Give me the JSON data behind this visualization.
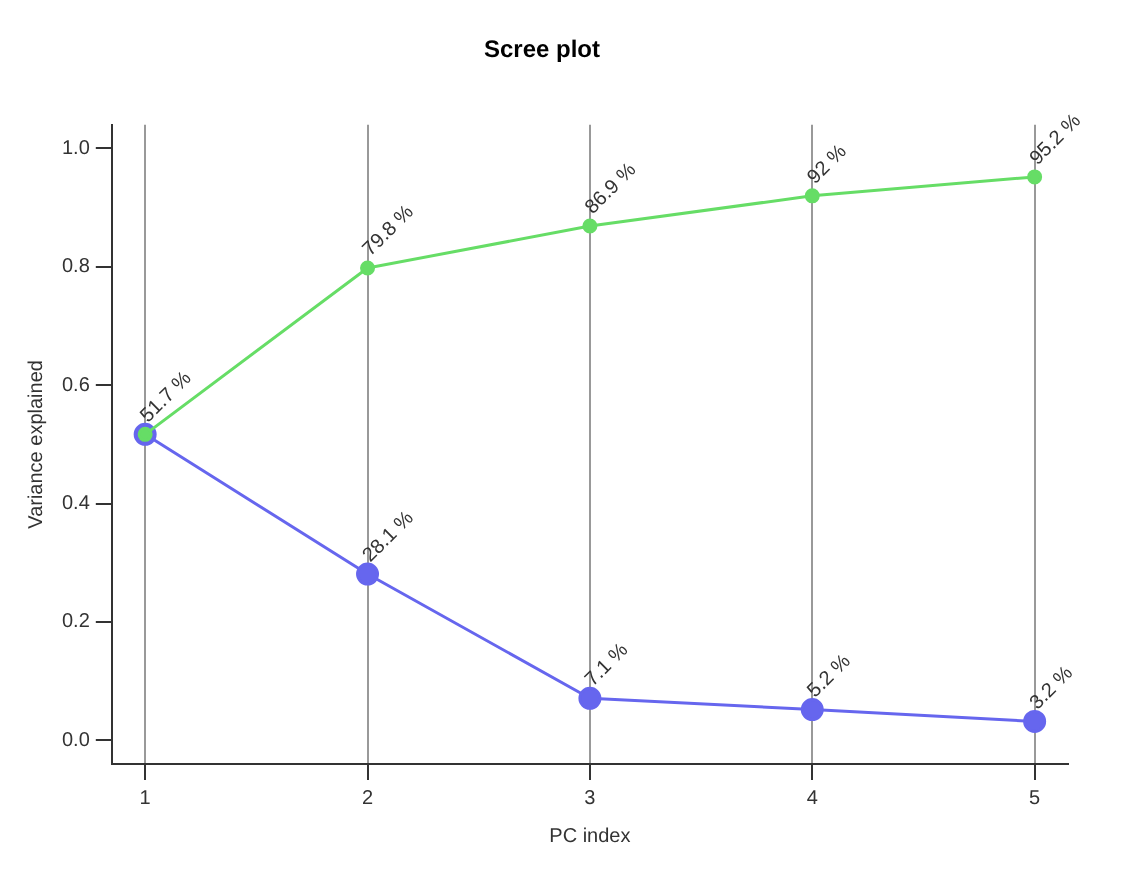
{
  "chart_data": {
    "type": "line",
    "title": "Scree plot",
    "xlabel": "PC index",
    "ylabel": "Variance explained",
    "x": [
      1,
      2,
      3,
      4,
      5
    ],
    "series": [
      {
        "color": "#66dd66",
        "values": [
          0.517,
          0.798,
          0.869,
          0.92,
          0.952
        ],
        "value_labels": [
          "51.7 %",
          "79.8 %",
          "86.9 %",
          "92 %",
          "95.2 %"
        ]
      },
      {
        "color": "#6666ee",
        "values": [
          0.517,
          0.281,
          0.071,
          0.052,
          0.032
        ],
        "value_labels": [
          null,
          "28.1 %",
          "7.1 %",
          "5.2 %",
          "3.2 %"
        ]
      }
    ],
    "xlim": [
      0.85,
      5.15
    ],
    "xticks": [
      1,
      2,
      3,
      4,
      5
    ],
    "ylim": [
      -0.04,
      1.04
    ],
    "yticks": [
      {
        "value": 0,
        "label": "0.0"
      },
      0.2,
      0.4,
      0.6,
      0.8,
      {
        "value": 1,
        "label": "1.0"
      }
    ],
    "grid": "x",
    "marker": "circle",
    "line_style": "solid",
    "legend": false
  }
}
